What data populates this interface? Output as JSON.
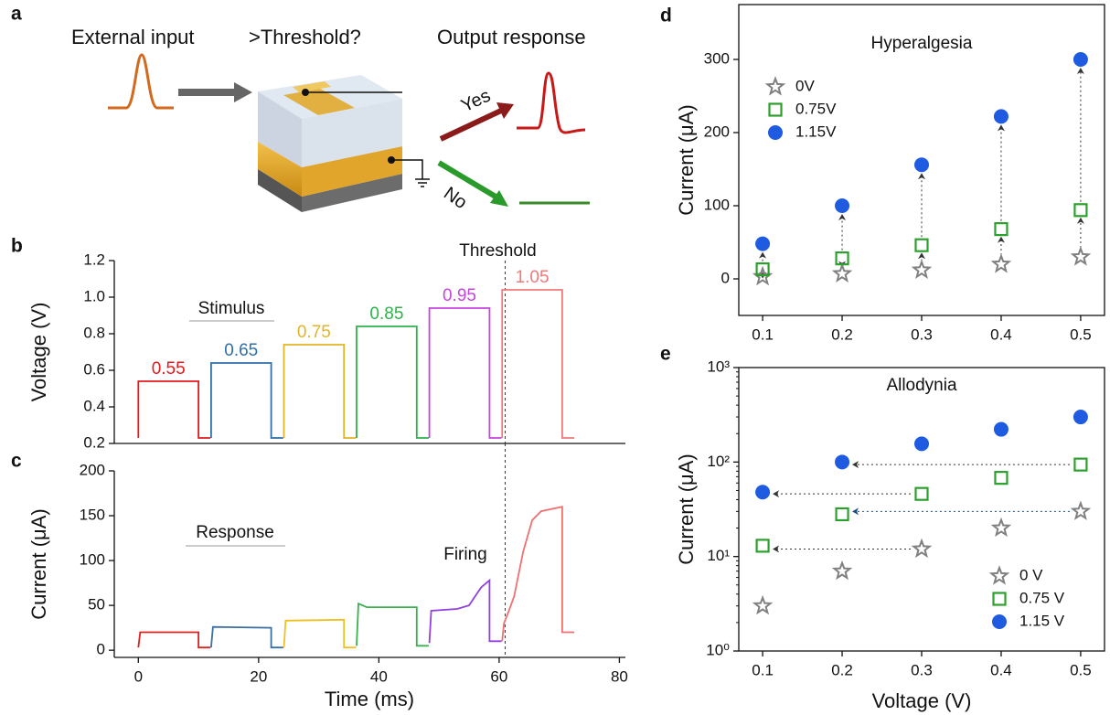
{
  "diagram": {
    "panel": "a",
    "input": "External input",
    "question": ">Threshold?",
    "output": "Output response",
    "yes": "Yes",
    "no": "No"
  },
  "chart_data": [
    {
      "panel": "b",
      "type": "line",
      "y_label": "Voltage (V)",
      "annotation": "Stimulus",
      "threshold_label": "Threshold",
      "threshold_x": 61,
      "xlim": [
        -4,
        81
      ],
      "ylim": [
        0.2,
        1.2
      ],
      "yticks": [
        0.2,
        0.4,
        0.6,
        0.8,
        {
          "value": 1,
          "label": "1.0"
        },
        1.2
      ],
      "series": [
        {
          "name": "0.55",
          "color": "#e41a1c",
          "x": [
            0,
            0,
            10,
            10,
            12
          ],
          "values": [
            0.23,
            0.54,
            0.54,
            0.23,
            0.23
          ]
        },
        {
          "name": "0.65",
          "color": "#2f6fa7",
          "x": [
            12.1,
            12.1,
            22.1,
            22.1,
            24.1
          ],
          "values": [
            0.23,
            0.64,
            0.64,
            0.23,
            0.23
          ]
        },
        {
          "name": "0.75",
          "color": "#e3b424",
          "x": [
            24.2,
            24.2,
            34.2,
            34.2,
            36.2
          ],
          "values": [
            0.23,
            0.74,
            0.74,
            0.23,
            0.23
          ]
        },
        {
          "name": "0.85",
          "color": "#2db34a",
          "x": [
            36.3,
            36.3,
            46.3,
            46.3,
            48.3
          ],
          "values": [
            0.23,
            0.84,
            0.84,
            0.23,
            0.23
          ]
        },
        {
          "name": "0.95",
          "color": "#c644e0",
          "x": [
            48.4,
            48.4,
            58.4,
            58.4,
            60.4
          ],
          "values": [
            0.23,
            0.94,
            0.94,
            0.23,
            0.23
          ]
        },
        {
          "name": "1.05",
          "color": "#f07a7a",
          "x": [
            60.5,
            60.5,
            70.5,
            70.5,
            72.5
          ],
          "values": [
            0.23,
            1.04,
            1.04,
            0.23,
            0.23
          ]
        }
      ]
    },
    {
      "panel": "c",
      "type": "line",
      "x_label": "Time (ms)",
      "y_label": "Current (μA)",
      "annotation": "Response",
      "firing_label": "Firing",
      "threshold_x": 61,
      "xlim": [
        -4,
        81
      ],
      "xticks": [
        0,
        20,
        40,
        60,
        80
      ],
      "ylim": [
        -8,
        200
      ],
      "yticks": [
        0,
        50,
        100,
        150,
        200
      ],
      "series": [
        {
          "color": "#e02020",
          "x": [
            0,
            0.3,
            10,
            10,
            12
          ],
          "values": [
            3,
            20,
            20,
            3,
            3
          ]
        },
        {
          "color": "#3a6ea0",
          "x": [
            12.1,
            12.4,
            22.1,
            22.1,
            24.1
          ],
          "values": [
            3,
            26,
            25,
            3,
            3
          ]
        },
        {
          "color": "#f0c020",
          "x": [
            24.2,
            24.5,
            34.2,
            34.2,
            36.2
          ],
          "values": [
            3,
            33,
            34,
            3,
            3
          ]
        },
        {
          "color": "#3cb050",
          "x": [
            36.3,
            36.6,
            38,
            46.3,
            46.3,
            48.3
          ],
          "values": [
            5,
            52,
            48,
            48,
            5,
            5
          ]
        },
        {
          "color": "#9040e0",
          "x": [
            48.4,
            48.7,
            53,
            55,
            56,
            57,
            58.4,
            58.4,
            60.4
          ],
          "values": [
            8,
            44,
            46,
            50,
            60,
            70,
            78,
            10,
            10
          ]
        },
        {
          "color": "#f07070",
          "x": [
            60.5,
            60.8,
            61.5,
            62.5,
            64,
            65.5,
            67,
            70.5,
            70.5,
            72.5
          ],
          "values": [
            10,
            30,
            42,
            60,
            110,
            145,
            155,
            160,
            20,
            20
          ]
        }
      ]
    },
    {
      "panel": "d",
      "type": "scatter",
      "title": "Hyperalgesia",
      "y_label": "Current (μA)",
      "legend": "upper left",
      "x": [
        0.1,
        0.2,
        0.3,
        0.4,
        0.5
      ],
      "xlim": [
        0.07,
        0.53
      ],
      "xticks": [
        0.1,
        0.2,
        0.3,
        0.4,
        0.5
      ],
      "ylim": [
        -50,
        375
      ],
      "yticks": [
        0,
        100,
        200,
        300
      ],
      "series": [
        {
          "name": "0V",
          "color": "#808080",
          "marker": "star",
          "values": [
            3,
            7,
            12,
            20,
            30
          ]
        },
        {
          "name": "0.75V",
          "color": "#2ca02c",
          "marker": "square",
          "values": [
            13,
            28,
            46,
            68,
            94
          ]
        },
        {
          "name": "1.15V",
          "color": "#1f5be0",
          "marker": "circle",
          "values": [
            48,
            100,
            156,
            222,
            300
          ]
        }
      ]
    },
    {
      "panel": "e",
      "type": "scatter",
      "title": "Allodynia",
      "x_label": "Voltage (V)",
      "y_label": "Current (μA)",
      "legend": "lower right",
      "log_y": true,
      "x": [
        0.1,
        0.2,
        0.3,
        0.4,
        0.5
      ],
      "xlim": [
        0.07,
        0.53
      ],
      "xticks": [
        0.1,
        0.2,
        0.3,
        0.4,
        0.5
      ],
      "ylim": [
        1,
        1000
      ],
      "yticks": [
        {
          "value": 1,
          "label": "10⁰"
        },
        {
          "value": 10,
          "label": "10¹"
        },
        {
          "value": 100,
          "label": "10²"
        },
        {
          "value": 1000,
          "label": "10³"
        }
      ],
      "series": [
        {
          "name": "0 V",
          "color": "#808080",
          "marker": "star",
          "values": [
            3,
            7,
            12,
            20,
            30
          ]
        },
        {
          "name": "0.75 V",
          "color": "#2ca02c",
          "marker": "square",
          "values": [
            13,
            28,
            46,
            68,
            94
          ]
        },
        {
          "name": "1.15 V",
          "color": "#1f5be0",
          "marker": "circle",
          "values": [
            48,
            100,
            156,
            222,
            300
          ]
        }
      ]
    }
  ]
}
